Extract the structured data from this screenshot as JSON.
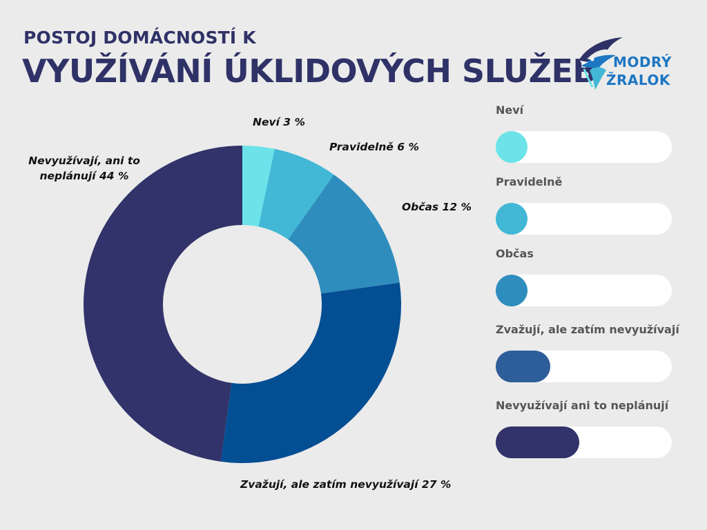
{
  "title": {
    "line1": "POSTOJ DOMÁCNOSTÍ K",
    "line2": "VYUŽÍVÁNÍ ÚKLIDOVÝCH SLUŽEB"
  },
  "logo": {
    "line1": "MODRÝ",
    "line2": "ŽRALOK",
    "icon": "shark-icon"
  },
  "chart_data": {
    "type": "pie",
    "variant": "donut",
    "categories": [
      "Neví",
      "Pravidelně",
      "Občas",
      "Zvažují, ale zatím nevyužívají",
      "Nevyužívají, ani to neplánují"
    ],
    "values": [
      3,
      6,
      12,
      27,
      44
    ],
    "unit": "%",
    "colors": [
      "#6be3e8",
      "#42b8d6",
      "#2f8dbd",
      "#044e94",
      "#31336a"
    ],
    "slice_labels": [
      [
        "Neví  3 %"
      ],
      [
        "Pravidelně  6 %"
      ],
      [
        "Občas  12 %"
      ],
      [
        "Zvažují, ale zatím nevyužívají  27 %"
      ],
      [
        "Nevyužívají, ani to",
        "neplánují  44 %"
      ]
    ],
    "legend": {
      "placement": "right",
      "entries": [
        "Neví",
        "Pravidelně",
        "Občas",
        "Zvažují, ale zatím nevyužívají",
        "Nevyužívají ani to neplánují"
      ],
      "bar_colors": [
        "#6be3e8",
        "#42b8d6",
        "#2f8dbd",
        "#2e5e99",
        "#31336a"
      ]
    }
  }
}
